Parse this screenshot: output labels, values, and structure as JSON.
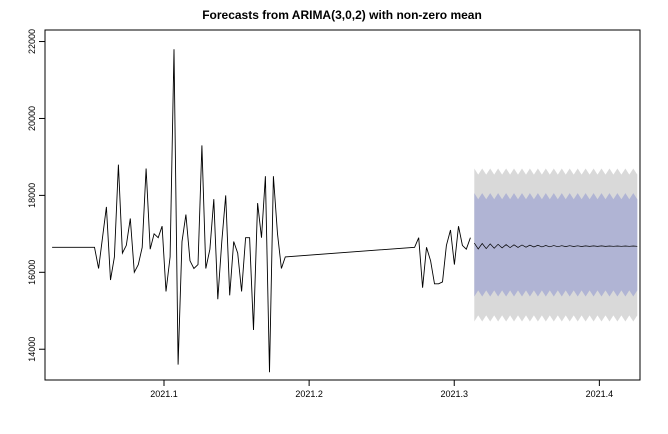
{
  "chart_data": {
    "type": "line",
    "title": "Forecasts from ARIMA(3,0,2) with non-zero mean",
    "xlabel": "",
    "ylabel": "",
    "xlim": [
      2021.018,
      2021.428
    ],
    "ylim": [
      13200,
      22300
    ],
    "x_ticks": [
      2021.1,
      2021.2,
      2021.3,
      2021.4
    ],
    "x_tick_labels": [
      "2021.1",
      "2021.2",
      "2021.3",
      "2021.4"
    ],
    "y_ticks": [
      14000,
      16000,
      18000,
      20000,
      22000
    ],
    "y_tick_labels": [
      "14000",
      "16000",
      "18000",
      "20000",
      "22000"
    ],
    "grid": false,
    "colors": {
      "observed": "#000000",
      "forecast_mean": "#000000",
      "interval_95": "#d9d9d9",
      "interval_80": "#b0b4d4",
      "axes": "#000000"
    },
    "observed": {
      "x": [
        2021.0229,
        2021.0521,
        2021.0549,
        2021.0576,
        2021.0603,
        2021.0631,
        2021.0658,
        2021.0686,
        2021.0713,
        2021.074,
        2021.0768,
        2021.0795,
        2021.0823,
        2021.085,
        2021.0877,
        2021.0905,
        2021.0932,
        2021.096,
        2021.0987,
        2021.1014,
        2021.1042,
        2021.1069,
        2021.1097,
        2021.1124,
        2021.1151,
        2021.1179,
        2021.1206,
        2021.1234,
        2021.1261,
        2021.1288,
        2021.1316,
        2021.1343,
        2021.1371,
        2021.1398,
        2021.1425,
        2021.1453,
        2021.148,
        2021.1508,
        2021.1535,
        2021.1562,
        2021.159,
        2021.1617,
        2021.1645,
        2021.1672,
        2021.1699,
        2021.1727,
        2021.1754,
        2021.1782,
        2021.1809,
        2021.1836,
        2021.2727,
        2021.2755,
        2021.2782,
        2021.2809,
        2021.2837,
        2021.2864,
        2021.2892,
        2021.2919,
        2021.2946,
        2021.2974,
        2021.3001,
        2021.3029,
        2021.3056,
        2021.3083,
        2021.3111
      ],
      "y": [
        16650,
        16650,
        16100,
        16900,
        17700,
        15800,
        16400,
        18800,
        16500,
        16700,
        17400,
        16000,
        16200,
        16650,
        18700,
        16600,
        17000,
        16900,
        17200,
        15500,
        16400,
        21800,
        13600,
        16800,
        17500,
        16300,
        16100,
        16200,
        19300,
        16100,
        16600,
        17900,
        15300,
        16800,
        18000,
        15400,
        16800,
        16500,
        15500,
        16900,
        16900,
        14500,
        17800,
        16900,
        18500,
        13400,
        18500,
        17000,
        16100,
        16400,
        16650,
        16900,
        15600,
        16650,
        16300,
        15700,
        15700,
        15750,
        16700,
        17100,
        16200,
        17200,
        16700,
        16600,
        16900
      ]
    },
    "forecast": {
      "x_start": 2021.3138,
      "x_end": 2021.4262,
      "step": 0.00274,
      "mean_base": 16680,
      "mean_wiggle": 80,
      "lo80": 15450,
      "hi80": 17980,
      "lo95": 14800,
      "hi95": 18620,
      "band_wiggle": 80
    }
  }
}
